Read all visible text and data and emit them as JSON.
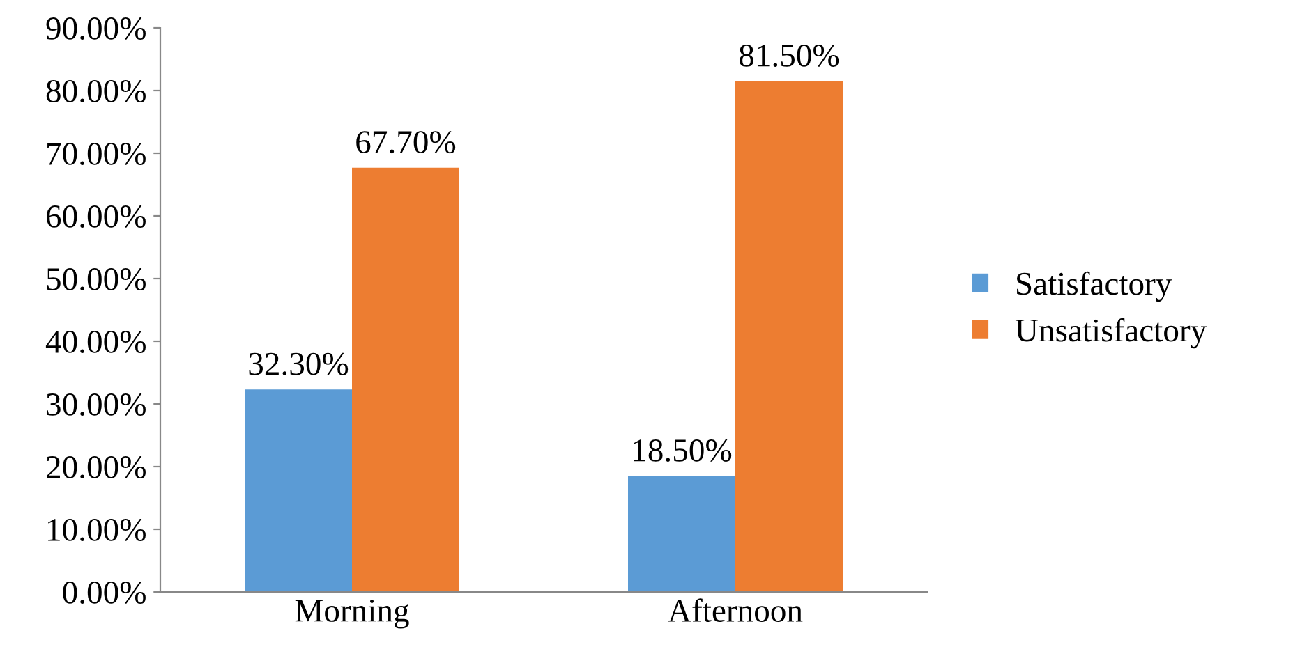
{
  "chart_data": {
    "type": "bar",
    "categories": [
      "Morning",
      "Afternoon"
    ],
    "series": [
      {
        "name": "Satisfactory",
        "color": "#5b9bd5",
        "values": [
          32.3,
          18.5
        ],
        "value_labels": [
          "32.30%",
          "18.50%"
        ]
      },
      {
        "name": "Unsatisfactory",
        "color": "#ed7d31",
        "values": [
          67.7,
          81.5
        ],
        "value_labels": [
          "67.70%",
          "81.50%"
        ]
      }
    ],
    "ylim": [
      0,
      90
    ],
    "yticks": [
      {
        "value": 0,
        "label": "0.00%"
      },
      {
        "value": 10,
        "label": "10.00%"
      },
      {
        "value": 20,
        "label": "20.00%"
      },
      {
        "value": 30,
        "label": "30.00%"
      },
      {
        "value": 40,
        "label": "40.00%"
      },
      {
        "value": 50,
        "label": "50.00%"
      },
      {
        "value": 60,
        "label": "60.00%"
      },
      {
        "value": 70,
        "label": "70.00%"
      },
      {
        "value": 80,
        "label": "80.00%"
      },
      {
        "value": 90,
        "label": "90.00%"
      }
    ],
    "grid": false,
    "legend": "right"
  }
}
